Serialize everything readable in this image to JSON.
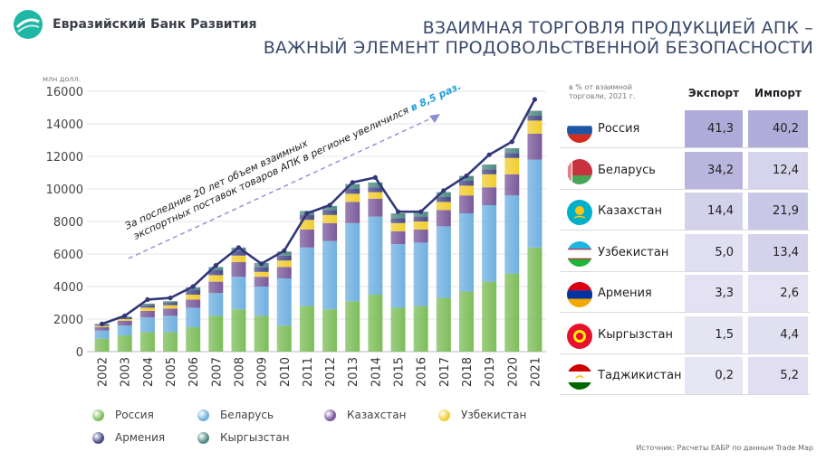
{
  "header": {
    "logo_text": "Евразийский Банк Развития",
    "title_line1": "ВЗАИМНАЯ ТОРГОВЛЯ ПРОДУКЦИЕЙ АПК –",
    "title_line2": "ВАЖНЫЙ ЭЛЕМЕНТ ПРОДОВОЛЬСТВЕННОЙ БЕЗОПАСНОСТИ"
  },
  "chart_data": {
    "type": "bar",
    "stacked": true,
    "ylabel": "млн долл.",
    "ylim": [
      0,
      16000
    ],
    "yticks": [
      0,
      2000,
      4000,
      6000,
      8000,
      10000,
      12000,
      14000,
      16000
    ],
    "ytick_labels": [
      "0",
      "2000",
      "4000",
      "6000",
      "8000",
      "10000",
      "12000",
      "14000",
      "16000"
    ],
    "categories": [
      "2002",
      "2003",
      "2004",
      "2005",
      "2006",
      "2007",
      "2008",
      "2009",
      "2010",
      "2011",
      "2012",
      "2013",
      "2014",
      "2015",
      "2016",
      "2017",
      "2018",
      "2019",
      "2020",
      "2021"
    ],
    "series": [
      {
        "name": "Россия",
        "color": "#7dbd5a",
        "values": [
          800,
          1000,
          1200,
          1200,
          1500,
          2200,
          2600,
          2200,
          1600,
          2800,
          2600,
          3100,
          3500,
          2700,
          2800,
          3300,
          3700,
          4300,
          4800,
          6400
        ]
      },
      {
        "name": "Беларусь",
        "color": "#6fb0e0",
        "values": [
          500,
          600,
          900,
          1000,
          1200,
          1400,
          2000,
          1800,
          2900,
          3600,
          4200,
          4800,
          4800,
          3900,
          3900,
          4400,
          4800,
          4700,
          4800,
          5400
        ]
      },
      {
        "name": "Казахстан",
        "color": "#7a5a9a",
        "values": [
          200,
          300,
          400,
          450,
          500,
          700,
          900,
          600,
          700,
          1100,
          1100,
          1300,
          1100,
          800,
          800,
          1000,
          1100,
          1100,
          1300,
          1600
        ]
      },
      {
        "name": "Узбекистан",
        "color": "#f1cd2f",
        "values": [
          80,
          100,
          200,
          200,
          300,
          400,
          400,
          300,
          400,
          600,
          500,
          500,
          400,
          500,
          500,
          500,
          600,
          800,
          1000,
          800
        ]
      },
      {
        "name": "Армения",
        "color": "#4a4a8a",
        "values": [
          60,
          80,
          150,
          150,
          300,
          300,
          300,
          300,
          300,
          300,
          300,
          300,
          300,
          300,
          300,
          300,
          300,
          300,
          300,
          300
        ]
      },
      {
        "name": "Кыргызстан",
        "color": "#4f8a82",
        "values": [
          60,
          70,
          100,
          100,
          150,
          200,
          200,
          250,
          250,
          250,
          250,
          300,
          300,
          300,
          300,
          300,
          300,
          300,
          300,
          300
        ]
      }
    ],
    "total_line": {
      "color": "#32377a",
      "values": [
        1700,
        2200,
        3200,
        3300,
        4000,
        5300,
        6400,
        5400,
        6200,
        8500,
        9000,
        10400,
        10700,
        8600,
        8600,
        9900,
        10800,
        12100,
        12900,
        15500
      ]
    },
    "annotation_text": "За последние 20 лет объем взаимных экспортных поставок товаров АПК в регионе увеличился ",
    "annotation_highlight": "в 8,5 раз.",
    "legend_position": "bottom"
  },
  "table": {
    "note": "в % от взаимной торговли, 2021 г.",
    "export_label": "Экспорт",
    "import_label": "Импорт",
    "rows": [
      {
        "country": "Россия",
        "export": "41,3",
        "import": "40,2",
        "flag": "russia-flag"
      },
      {
        "country": "Беларусь",
        "export": "34,2",
        "import": "12,4",
        "flag": "belarus-flag"
      },
      {
        "country": "Казахстан",
        "export": "14,4",
        "import": "21,9",
        "flag": "kazakhstan-flag"
      },
      {
        "country": "Узбекистан",
        "export": "5,0",
        "import": "13,4",
        "flag": "uzbekistan-flag"
      },
      {
        "country": "Армения",
        "export": "3,3",
        "import": "2,6",
        "flag": "armenia-flag"
      },
      {
        "country": "Кыргызстан",
        "export": "1,5",
        "import": "4,4",
        "flag": "kyrgyzstan-flag"
      },
      {
        "country": "Таджикистан",
        "export": "0,2",
        "import": "5,2",
        "flag": "tajikistan-flag"
      }
    ]
  },
  "source": "Источник: Расчеты ЕАБР по данным Trade Map"
}
